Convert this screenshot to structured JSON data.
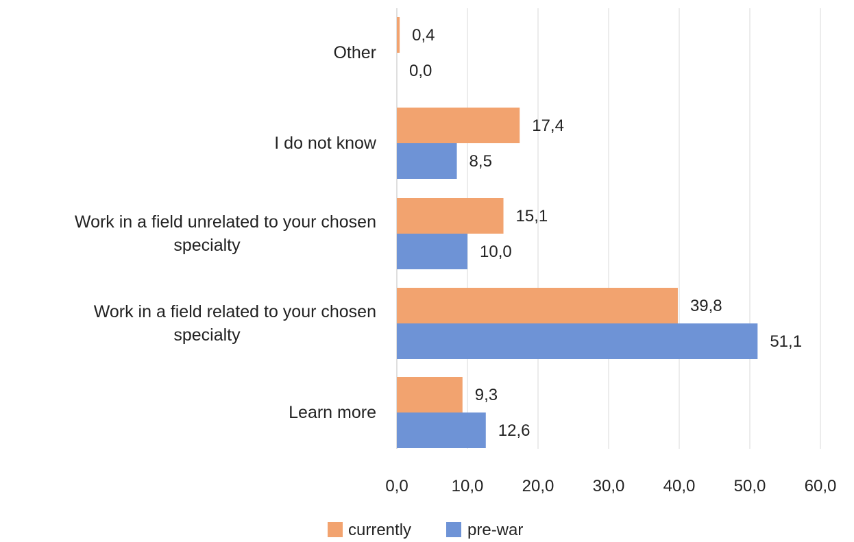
{
  "chart_data": {
    "type": "bar",
    "orientation": "horizontal",
    "categories": [
      [
        "Other"
      ],
      [
        "I do not know"
      ],
      [
        "Work in a field unrelated to your chosen",
        "specialty"
      ],
      [
        "Work in a field related to your chosen",
        "specialty"
      ],
      [
        "Learn more"
      ]
    ],
    "series": [
      {
        "name": "currently",
        "color": "#F2A36F",
        "values": [
          0.4,
          17.4,
          15.1,
          39.8,
          9.3
        ],
        "labels": [
          "0,4",
          "17,4",
          "15,1",
          "39,8",
          "9,3"
        ]
      },
      {
        "name": "pre-war",
        "color": "#6E93D6",
        "values": [
          0.0,
          8.5,
          10.0,
          51.1,
          12.6
        ],
        "labels": [
          "0,0",
          "8,5",
          "10,0",
          "51,1",
          "12,6"
        ]
      }
    ],
    "xlim": [
      0,
      60
    ],
    "xticks": [
      0,
      10,
      20,
      30,
      40,
      50,
      60
    ],
    "xtick_labels": [
      "0,0",
      "10,0",
      "20,0",
      "30,0",
      "40,0",
      "50,0",
      "60,0"
    ],
    "grid": "vertical",
    "legend_position": "bottom"
  }
}
